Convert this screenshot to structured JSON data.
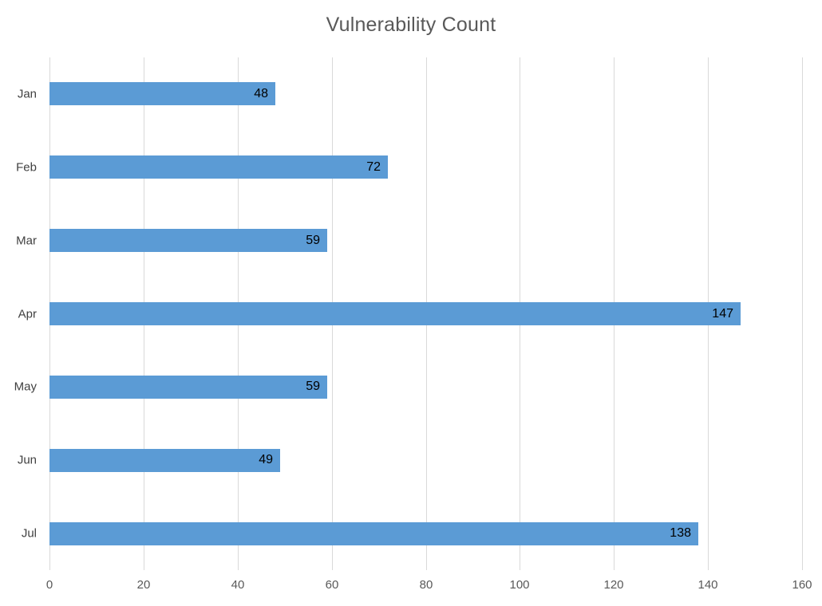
{
  "chart_data": {
    "type": "bar",
    "orientation": "horizontal",
    "title": "Vulnerability Count",
    "categories": [
      "Jan",
      "Feb",
      "Mar",
      "Apr",
      "May",
      "Jun",
      "Jul"
    ],
    "values": [
      48,
      72,
      59,
      147,
      59,
      49,
      138
    ],
    "xlabel": "",
    "ylabel": "",
    "xlim": [
      0,
      160
    ],
    "x_ticks": [
      0,
      20,
      40,
      60,
      80,
      100,
      120,
      140,
      160
    ],
    "grid": true,
    "legend": false,
    "data_labels": true,
    "colors": {
      "bar": "#5B9BD5",
      "title": "#595959",
      "axis_text": "#595959",
      "category_text": "#404040",
      "data_label": "#000000",
      "gridline": "#D9D9D9",
      "background": "#FFFFFF"
    }
  }
}
